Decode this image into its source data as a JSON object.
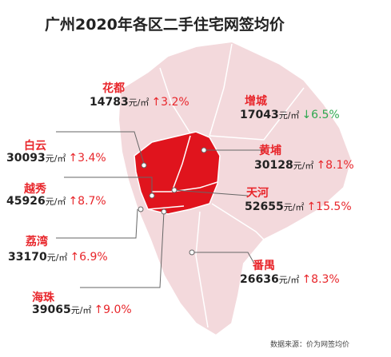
{
  "title": "广州2020年各区二手住宅网签均价",
  "districts": [
    {
      "name": "花都",
      "price": 14783,
      "unit": "元/㎡",
      "change": "↑3.2%",
      "change_color": "#e8262b"
    },
    {
      "name": "增城",
      "price": 17043,
      "unit": "元/㎡",
      "change": "↓6.5%",
      "change_color": "#2fa84f"
    },
    {
      "name": "白云",
      "price": 30093,
      "unit": "元/㎡",
      "change": "↑3.4%",
      "change_color": "#e8262b"
    },
    {
      "name": "黄埔",
      "price": 30128,
      "unit": "元/㎡",
      "change": "↑8.1%",
      "change_color": "#e8262b"
    },
    {
      "name": "越秀",
      "price": 45926,
      "unit": "元/㎡",
      "change": "↑8.7%",
      "change_color": "#e8262b"
    },
    {
      "name": "天河",
      "price": 52655,
      "unit": "元/㎡",
      "change": "↑15.5%",
      "change_color": "#e8262b"
    },
    {
      "name": "荔湾",
      "price": 33170,
      "unit": "元/㎡",
      "change": "↑6.9%",
      "change_color": "#e8262b"
    },
    {
      "name": "番禺",
      "price": 26636,
      "unit": "元/㎡",
      "change": "↑8.3%",
      "change_color": "#e8262b"
    },
    {
      "name": "海珠",
      "price": 39065,
      "unit": "元/㎡",
      "change": "↑9.0%",
      "change_color": "#e8262b"
    }
  ],
  "source": "数据来源：价为网签均价"
}
